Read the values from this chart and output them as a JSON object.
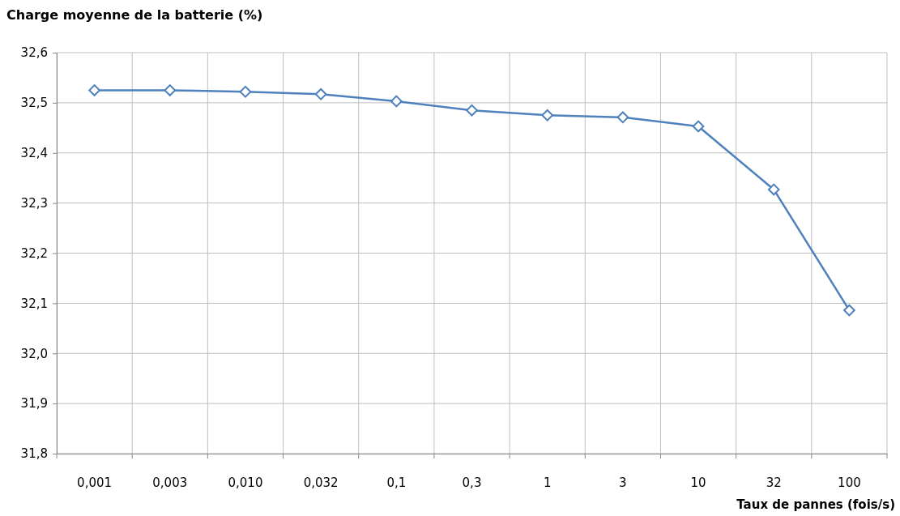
{
  "chart_data": {
    "type": "line",
    "title": "Charge moyenne de la batterie (%)",
    "xlabel": "Taux de pannes (fois/s)",
    "categories": [
      "0,001",
      "0,003",
      "0,010",
      "0,032",
      "0,1",
      "0,3",
      "1",
      "3",
      "10",
      "32",
      "100"
    ],
    "series": [
      {
        "color": "#4f81bd",
        "values": [
          32.525,
          32.525,
          32.522,
          32.517,
          32.503,
          32.485,
          32.475,
          32.471,
          32.453,
          32.327,
          32.086
        ]
      }
    ],
    "ylim": [
      31.8,
      32.6
    ],
    "yticks": [
      {
        "value": 31.8,
        "label": "31,8"
      },
      {
        "value": 31.9,
        "label": "31,9"
      },
      {
        "value": 32.0,
        "label": "32,0"
      },
      {
        "value": 32.1,
        "label": "32,1"
      },
      {
        "value": 32.2,
        "label": "32,2"
      },
      {
        "value": 32.3,
        "label": "32,3"
      },
      {
        "value": 32.4,
        "label": "32,4"
      },
      {
        "value": 32.5,
        "label": "32,5"
      },
      {
        "value": 32.6,
        "label": "32,6"
      }
    ],
    "grid": true,
    "marker": "diamond",
    "line_style": "solid"
  }
}
